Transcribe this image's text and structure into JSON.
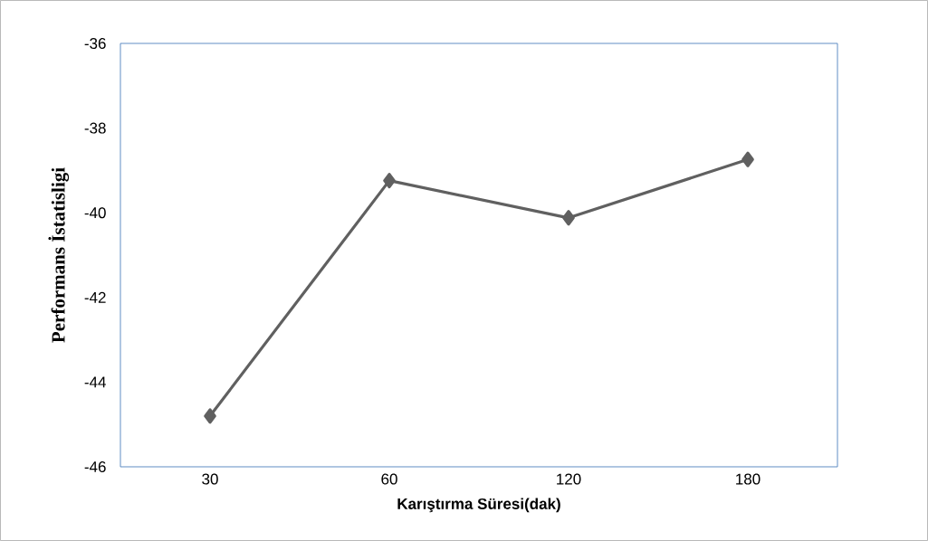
{
  "chart_data": {
    "type": "line",
    "xlabel": "Karıştırma Süresi(dak)",
    "ylabel": "Performans İstatisligi",
    "categories": [
      "30",
      "60",
      "120",
      "180"
    ],
    "series": [
      {
        "color": "#606060",
        "values": [
          -44.8,
          -39.24,
          -40.12,
          -38.74
        ]
      }
    ],
    "ylim": [
      -46,
      -36
    ],
    "yticks": [
      -46,
      -44,
      -42,
      -40,
      -38,
      -36
    ],
    "grid": false,
    "marker": "diamond",
    "line_style": "solid"
  }
}
